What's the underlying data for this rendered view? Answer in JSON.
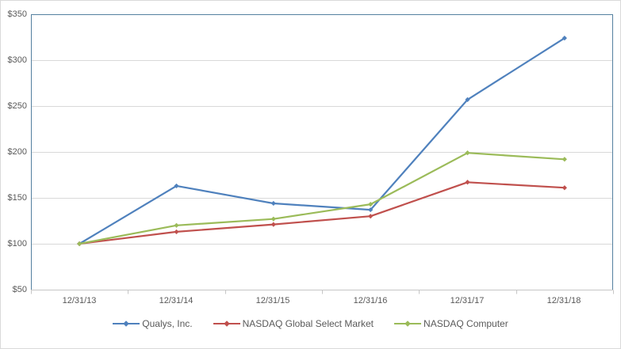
{
  "chart_data": {
    "type": "line",
    "title": "",
    "categories": [
      "12/31/13",
      "12/31/14",
      "12/31/15",
      "12/31/16",
      "12/31/17",
      "12/31/18"
    ],
    "series": [
      {
        "name": "Qualys, Inc.",
        "color": "#4F81BD",
        "values": [
          100,
          163,
          144,
          137,
          257,
          324
        ]
      },
      {
        "name": "NASDAQ Global Select Market",
        "color": "#C0504D",
        "values": [
          100,
          113,
          121,
          130,
          167,
          161
        ]
      },
      {
        "name": "NASDAQ Computer",
        "color": "#9BBB59",
        "values": [
          100,
          120,
          127,
          143,
          199,
          192
        ]
      }
    ],
    "y_axis": {
      "min": 50,
      "max": 350,
      "step": 50,
      "tick_labels": [
        "$350",
        "$300",
        "$250",
        "$200",
        "$150",
        "$100",
        "$50"
      ]
    },
    "grid": "horizontal",
    "legend_position": "bottom",
    "marker": "diamond",
    "colors": {
      "gridline": "#D9D9D9",
      "plot_border": "#54809F",
      "axis_line": "#C6C6C6",
      "tick_text": "#595959",
      "chart_border": "#D9D9D9"
    }
  }
}
